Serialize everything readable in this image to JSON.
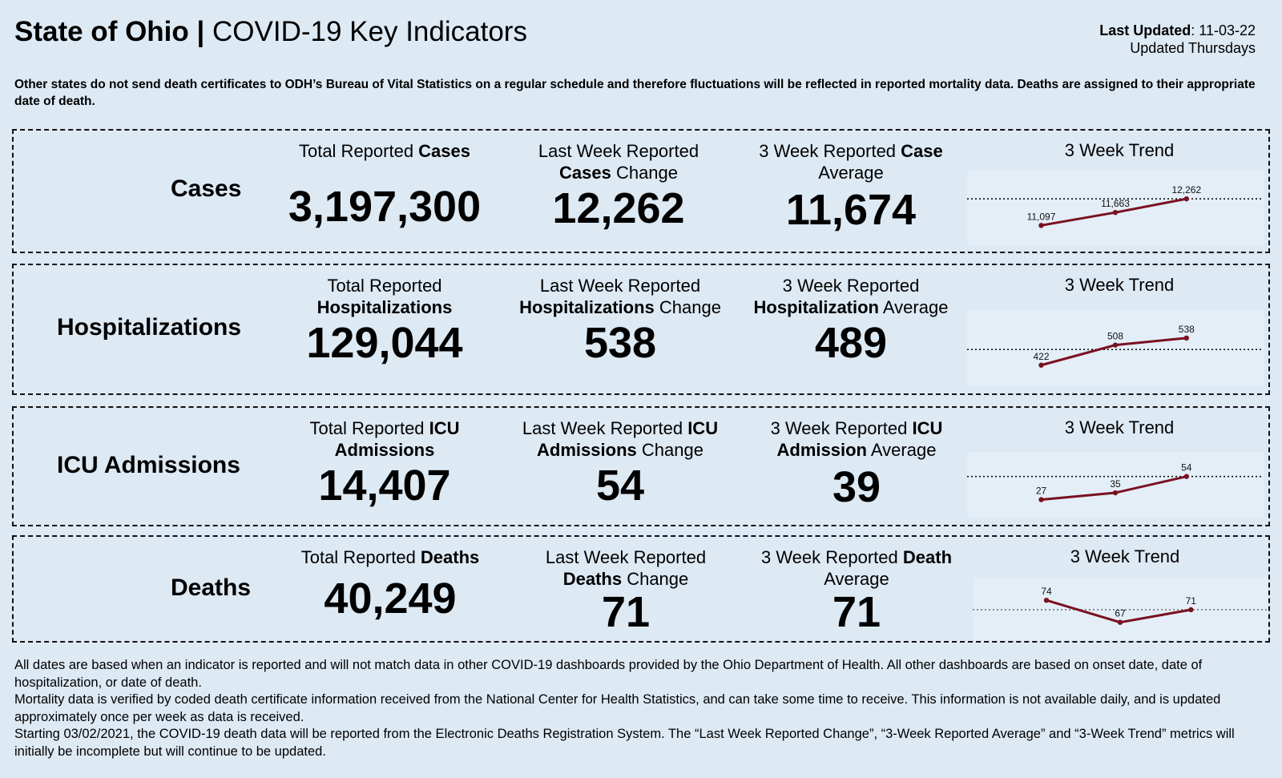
{
  "header": {
    "title_bold": "State of Ohio |",
    "title_rest": " COVID-19 Key Indicators",
    "last_updated_label": "Last Updated",
    "last_updated_value": ": 11-03-22",
    "schedule": "Updated Thursdays"
  },
  "note": "Other states do not send death certificates to ODH’s Bureau of Vital Statistics on a regular schedule and therefore fluctuations will be reflected in reported mortality data. Deaths are assigned to their appropriate date of death.",
  "rows": [
    {
      "label": "Cases",
      "total": {
        "pre": "Total Reported ",
        "bold": "Cases",
        "post": "",
        "value": "3,197,300"
      },
      "change": {
        "line1": "Last Week Reported",
        "bold": "Cases",
        "post": " Change",
        "value": "12,262"
      },
      "average": {
        "pre": "3 Week Reported ",
        "bold": "Case",
        "line2": "Average",
        "value": "11,674"
      },
      "trend_title": "3 Week Trend",
      "trend": {
        "labels": [
          "11,097",
          "11,663",
          "12,262"
        ],
        "values": [
          11097,
          11663,
          12262
        ],
        "reference": 12262
      }
    },
    {
      "label": "Hospitalizations",
      "total": {
        "pre": "Total Reported",
        "bold": "Hospitalizations",
        "post": "",
        "value": "129,044"
      },
      "change": {
        "line1": "Last Week Reported",
        "bold": "Hospitalizations",
        "post": " Change",
        "value": "538"
      },
      "average": {
        "pre": "3 Week Reported",
        "bold": "Hospitalization",
        "line2": " Average",
        "value": "489"
      },
      "trend_title": "3 Week Trend",
      "trend": {
        "labels": [
          "422",
          "508",
          "538"
        ],
        "values": [
          422,
          508,
          538
        ],
        "reference": 489
      }
    },
    {
      "label": "ICU Admissions",
      "total": {
        "pre": "Total Reported ",
        "bold": "ICU",
        "post": "Admissions",
        "value": "14,407"
      },
      "change": {
        "line1": "Last Week Reported ",
        "bold": "ICU",
        "post": "Admissions",
        "post2": " Change",
        "value": "54"
      },
      "average": {
        "pre": "3 Week Reported ",
        "bold": "ICU",
        "line2": "Admission",
        "line2b": " Average",
        "value": "39"
      },
      "trend_title": "3 Week Trend",
      "trend": {
        "labels": [
          "27",
          "35",
          "54"
        ],
        "values": [
          27,
          35,
          54
        ],
        "reference": 54
      }
    },
    {
      "label": "Deaths",
      "total": {
        "pre": "Total Reported ",
        "bold": "Deaths",
        "post": "",
        "value": "40,249"
      },
      "change": {
        "line1": "Last Week Reported",
        "bold": "Deaths",
        "post": " Change",
        "value": "71"
      },
      "average": {
        "pre": "3 Week Reported ",
        "bold": "Death",
        "line2": "Average",
        "value": "71"
      },
      "trend_title": "3 Week Trend",
      "trend": {
        "labels": [
          "74",
          "67",
          "71"
        ],
        "values": [
          74,
          67,
          71
        ],
        "reference": 71
      }
    }
  ],
  "footer": [
    "All dates are based when an indicator is reported and will not match data in other COVID-19 dashboards provided by the Ohio Department of Health. All other dashboards are based on onset date, date of hospitalization, or date of death.",
    "Mortality data is verified by coded death certificate information received from the National Center for Health Statistics, and can take some time to receive. This information is not available daily, and is updated approximately once per week as data is received.",
    "Starting 03/02/2021, the COVID-19 death data will be reported from the Electronic Deaths Registration System. The “Last Week Reported Change”, “3-Week Reported Average” and “3-Week Trend” metrics will initially be incomplete but will continue to be updated."
  ],
  "colors": {
    "background": "#dde9f3",
    "trend_line": "#7a1020",
    "trend_box": "#e4eef7"
  }
}
